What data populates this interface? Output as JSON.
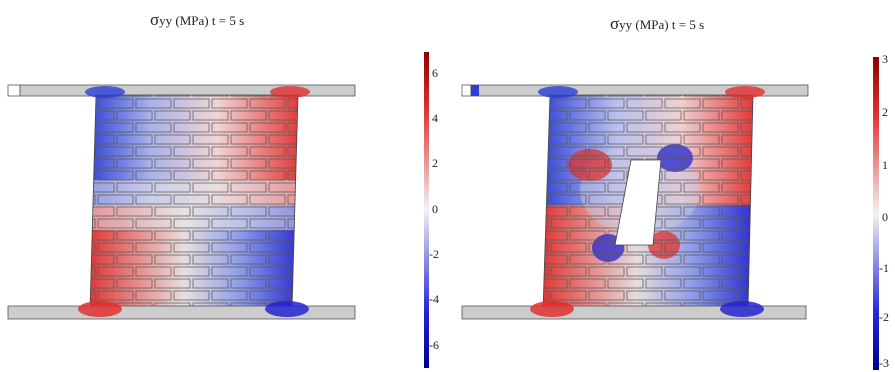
{
  "panels": [
    {
      "title_symbol": "σ",
      "title_text": "yy (MPa) t = 5 s",
      "colorbar": {
        "ticks": [
          "6",
          "4",
          "2",
          "0",
          "-2",
          "-4",
          "-6"
        ],
        "min": -7,
        "max": 7
      },
      "has_opening": false
    },
    {
      "title_symbol": "σ",
      "title_text": "yy  (MPa)  t = 5 s",
      "colorbar": {
        "ticks": [
          "3",
          "2",
          "1",
          "0",
          "-1",
          "-2",
          "-3"
        ],
        "min": -3.2,
        "max": 3.2
      },
      "has_opening": true
    }
  ],
  "colors": {
    "max": "#8b0000",
    "high": "#e8312f",
    "mid": "#f2f2f2",
    "low": "#2424d8",
    "min": "#00008b",
    "beam": "#cccccc",
    "mortar": "#555555"
  }
}
